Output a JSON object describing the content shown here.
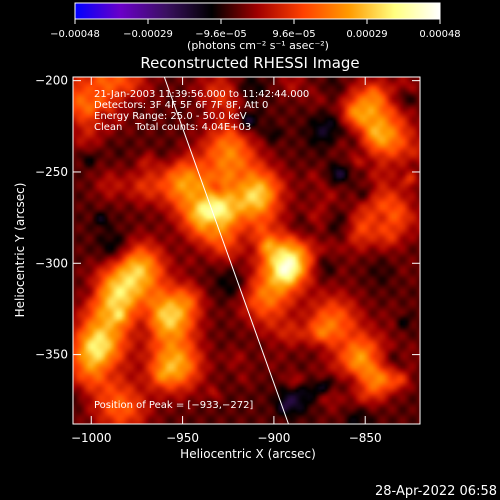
{
  "colorbar": {
    "ticks": [
      "−0.00048",
      "−0.00029",
      "−9.6e−05",
      "9.6e−05",
      "0.00029",
      "0.00048"
    ],
    "units": "(photons cm⁻² s⁻¹ asec⁻²)",
    "stops": [
      "#0000ff",
      "#6a00c8",
      "#3a1060",
      "#000000",
      "#a00000",
      "#ff4000",
      "#ff9a00",
      "#ffff80",
      "#ffffff"
    ]
  },
  "plot": {
    "title": "Reconstructed RHESSI Image",
    "xlabel": "Heliocentric X (arcsec)",
    "ylabel": "Heliocentric Y (arcsec)",
    "xlim": [
      -1010,
      -820
    ],
    "ylim": [
      -388,
      -198
    ],
    "xticks": [
      -1000,
      -950,
      -900,
      -850
    ],
    "xtick_labels": [
      "−1000",
      "−950",
      "−900",
      "−850"
    ],
    "yticks": [
      -200,
      -250,
      -300,
      -350
    ],
    "ytick_labels": [
      "−200",
      "−250",
      "−300",
      "−350"
    ],
    "limb_line": [
      [
        -960,
        -198
      ],
      [
        -892,
        -388
      ]
    ],
    "annotations": [
      "21-Jan-2003 11:39:56.000 to 11:42:44.000",
      "Detectors: 3F 4F 5F 6F 7F 8F, Att 0",
      "Energy Range: 25.0 - 50.0 keV",
      "Clean    Total counts: 4.04E+03"
    ],
    "peak_text": "Position of Peak = [−933,−272]",
    "hotspots": [
      {
        "x": -935,
        "y": -272,
        "v": 1.0
      },
      {
        "x": -910,
        "y": -262,
        "v": 0.8
      },
      {
        "x": -893,
        "y": -297,
        "v": 0.85
      },
      {
        "x": -950,
        "y": -255,
        "v": 0.6
      },
      {
        "x": -975,
        "y": -302,
        "v": 0.7
      },
      {
        "x": -988,
        "y": -318,
        "v": 0.75
      },
      {
        "x": -958,
        "y": -328,
        "v": 0.8
      },
      {
        "x": -955,
        "y": -355,
        "v": 0.7
      },
      {
        "x": -995,
        "y": -340,
        "v": 0.6
      },
      {
        "x": -1000,
        "y": -355,
        "v": 0.5
      },
      {
        "x": -1003,
        "y": -210,
        "v": 0.55
      },
      {
        "x": -985,
        "y": -203,
        "v": 0.5
      },
      {
        "x": -848,
        "y": -215,
        "v": 0.6
      },
      {
        "x": -838,
        "y": -232,
        "v": 0.5
      },
      {
        "x": -840,
        "y": -270,
        "v": 0.45
      },
      {
        "x": -852,
        "y": -352,
        "v": 0.55
      },
      {
        "x": -868,
        "y": -330,
        "v": 0.45
      },
      {
        "x": -925,
        "y": -240,
        "v": 0.55
      },
      {
        "x": -905,
        "y": -318,
        "v": 0.5
      },
      {
        "x": -985,
        "y": -378,
        "v": 0.45
      },
      {
        "x": -930,
        "y": -210,
        "v": 0.4
      }
    ]
  },
  "timestamp": "28-Apr-2022 06:58"
}
